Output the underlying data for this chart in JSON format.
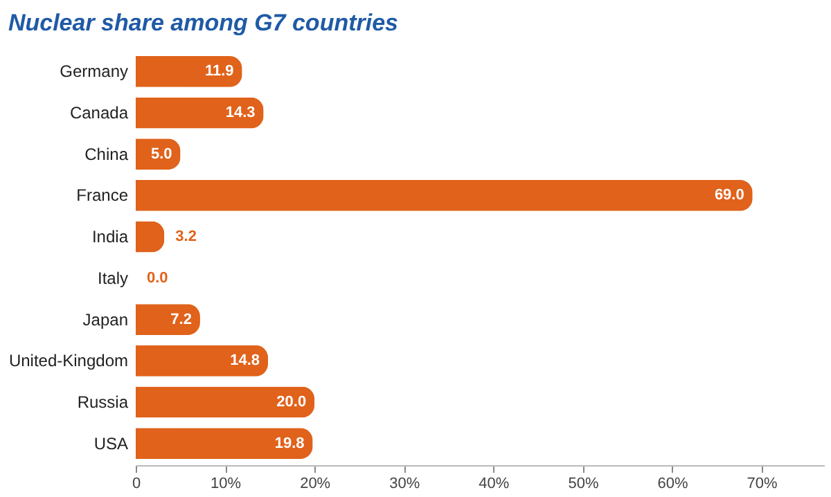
{
  "chart_data": {
    "type": "bar",
    "orientation": "horizontal",
    "title": "Nuclear share among G7 countries",
    "categories": [
      "Germany",
      "Canada",
      "China",
      "France",
      "India",
      "Italy",
      "Japan",
      "United-Kingdom",
      "Russia",
      "USA"
    ],
    "values": [
      11.9,
      14.3,
      5.0,
      69.0,
      3.2,
      0.0,
      7.2,
      14.8,
      20.0,
      19.8
    ],
    "value_labels": [
      "11.9",
      "14.3",
      "5.0",
      "69.0",
      "3.2",
      "0.0",
      "7.2",
      "14.8",
      "20.0",
      "19.8"
    ],
    "color": "#e0621b",
    "xlim": [
      0,
      77
    ],
    "xticks": [
      {
        "value": 0,
        "label": "0"
      },
      {
        "value": 10,
        "label": "10%"
      },
      {
        "value": 20,
        "label": "20%"
      },
      {
        "value": 30,
        "label": "30%"
      },
      {
        "value": 40,
        "label": "40%"
      },
      {
        "value": 50,
        "label": "50%"
      },
      {
        "value": 60,
        "label": "60%"
      },
      {
        "value": 70,
        "label": "70%"
      }
    ],
    "grid": false
  }
}
